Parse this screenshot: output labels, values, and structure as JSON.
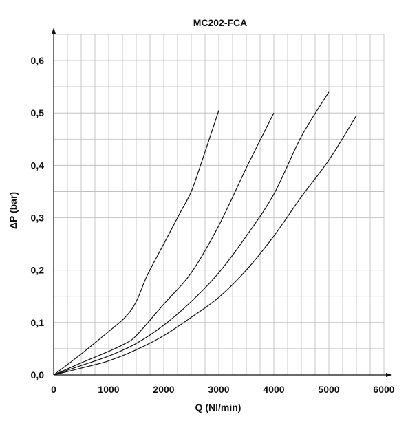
{
  "chart_data": {
    "type": "line",
    "title": "MC202-FCA",
    "xlabel": "Q (Nl/min)",
    "ylabel": "ΔP  (bar)",
    "xlim": [
      0,
      6000
    ],
    "ylim": [
      0,
      0.65
    ],
    "x_ticks": [
      0,
      1000,
      2000,
      3000,
      4000,
      5000,
      6000
    ],
    "x_tick_labels": [
      "0",
      "1000",
      "2000",
      "3000",
      "4000",
      "5000",
      "6000"
    ],
    "y_ticks": [
      0,
      0.1,
      0.2,
      0.3,
      0.4,
      0.5,
      0.6
    ],
    "y_tick_labels": [
      "0,0",
      "0,1",
      "0,2",
      "0,3",
      "0,4",
      "0,5",
      "0,6"
    ],
    "grid": true,
    "grid_x_step": 250,
    "grid_y_step": 0.05,
    "line_color": "#111111",
    "series": [
      {
        "x": [
          0,
          500,
          1000,
          1300,
          1500,
          1700,
          2000,
          2300,
          2500,
          2700,
          3000
        ],
        "y": [
          0,
          0.04,
          0.083,
          0.11,
          0.14,
          0.19,
          0.25,
          0.31,
          0.35,
          0.41,
          0.505
        ]
      },
      {
        "x": [
          0,
          500,
          1000,
          1300,
          1500,
          2000,
          2500,
          3000,
          3500,
          4000
        ],
        "y": [
          0,
          0.023,
          0.045,
          0.06,
          0.075,
          0.135,
          0.195,
          0.285,
          0.395,
          0.5
        ]
      },
      {
        "x": [
          0,
          500,
          1000,
          1500,
          2000,
          2500,
          3000,
          3500,
          4000,
          4500,
          5000
        ],
        "y": [
          0,
          0.018,
          0.036,
          0.06,
          0.095,
          0.14,
          0.195,
          0.265,
          0.345,
          0.455,
          0.54
        ]
      },
      {
        "x": [
          0,
          500,
          1000,
          1500,
          2000,
          2500,
          3000,
          3500,
          4000,
          4500,
          5000,
          5500
        ],
        "y": [
          0,
          0.013,
          0.027,
          0.048,
          0.075,
          0.11,
          0.148,
          0.2,
          0.265,
          0.34,
          0.41,
          0.495
        ]
      }
    ]
  }
}
